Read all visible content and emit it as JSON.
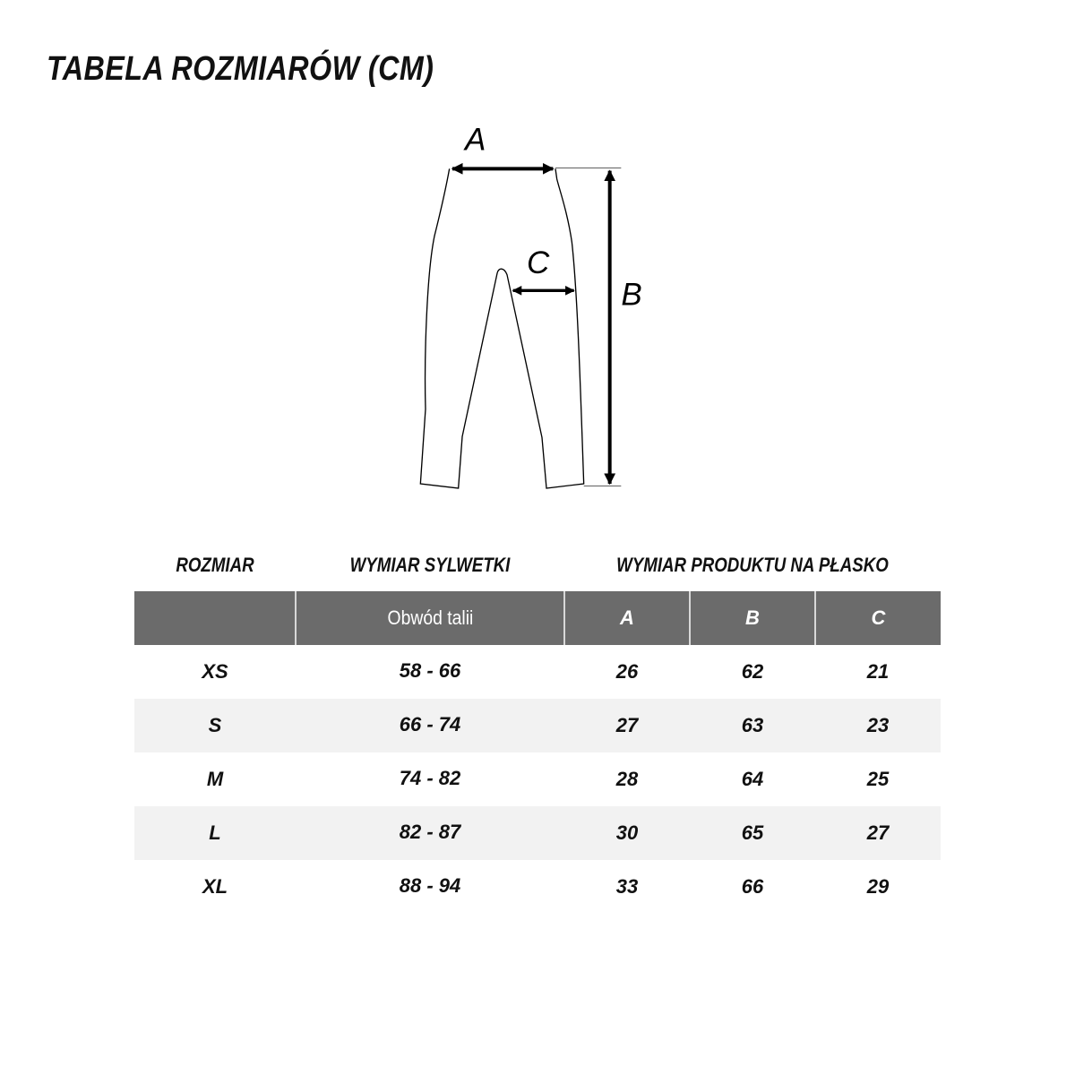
{
  "title": "TABELA ROZMIARÓW (CM)",
  "diagram": {
    "labels": {
      "a": "A",
      "b": "B",
      "c": "C"
    }
  },
  "table": {
    "group_headers": [
      "ROZMIAR",
      "WYMIAR SYLWETKI",
      "WYMIAR PRODUKTU NA PŁASKO"
    ],
    "columns": [
      "",
      "Obwód talii",
      "A",
      "B",
      "C"
    ],
    "rows": [
      [
        "XS",
        "58 - 66",
        "26",
        "62",
        "21"
      ],
      [
        "S",
        "66 - 74",
        "27",
        "63",
        "23"
      ],
      [
        "M",
        "74 - 82",
        "28",
        "64",
        "25"
      ],
      [
        "L",
        "82 - 87",
        "30",
        "65",
        "27"
      ],
      [
        "XL",
        "88 - 94",
        "33",
        "66",
        "29"
      ]
    ]
  },
  "colors": {
    "header_bg": "#6b6b6b",
    "stripe_bg": "#f2f2f2"
  }
}
